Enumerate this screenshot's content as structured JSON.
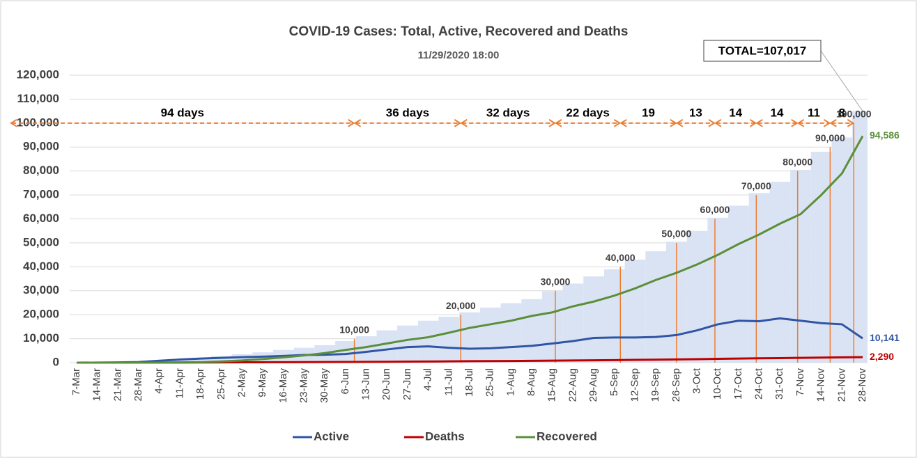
{
  "chart_data": {
    "type": "combo",
    "title": "COVID-19 Cases:  Total, Active, Recovered and Deaths",
    "subtitle": "11/29/2020 18:00",
    "categories": [
      "7-Mar",
      "14-Mar",
      "21-Mar",
      "28-Mar",
      "4-Apr",
      "11-Apr",
      "18-Apr",
      "25-Apr",
      "2-May",
      "9-May",
      "16-May",
      "23-May",
      "30-May",
      "6-Jun",
      "13-Jun",
      "20-Jun",
      "27-Jun",
      "4-Jul",
      "11-Jul",
      "18-Jul",
      "25-Jul",
      "1-Aug",
      "8-Aug",
      "15-Aug",
      "22-Aug",
      "29-Aug",
      "5-Sep",
      "12-Sep",
      "19-Sep",
      "26-Sep",
      "3-Oct",
      "10-Oct",
      "17-Oct",
      "24-Oct",
      "31-Oct",
      "7-Nov",
      "14-Nov",
      "21-Nov",
      "28-Nov"
    ],
    "total": {
      "color": "#dae3f3",
      "values": [
        0,
        50,
        150,
        300,
        1000,
        1500,
        2000,
        2800,
        3500,
        4300,
        5300,
        6200,
        7300,
        9000,
        11000,
        13500,
        15500,
        17500,
        19200,
        21000,
        23000,
        24800,
        26500,
        29800,
        33000,
        36000,
        39000,
        43000,
        46500,
        50500,
        55000,
        60500,
        65500,
        70800,
        75500,
        80500,
        88000,
        94000,
        105000
      ]
    },
    "total_label": "TOTAL=107,017",
    "series": [
      {
        "name": "Active",
        "color": "#2f55a4",
        "end_label": "10,141",
        "values": [
          0,
          30,
          100,
          250,
          800,
          1300,
          1700,
          2000,
          2300,
          2500,
          2800,
          3200,
          3300,
          3600,
          4500,
          5500,
          6500,
          6800,
          6200,
          5800,
          6000,
          6500,
          7000,
          8000,
          9000,
          10300,
          10500,
          10500,
          10700,
          11500,
          13500,
          16000,
          17500,
          17300,
          18500,
          17500,
          16500,
          16000,
          10141
        ]
      },
      {
        "name": "Deaths",
        "color": "#c00000",
        "end_label": "2,290",
        "values": [
          0,
          0,
          0,
          5,
          20,
          50,
          80,
          100,
          130,
          160,
          190,
          220,
          250,
          280,
          320,
          380,
          420,
          480,
          540,
          600,
          650,
          700,
          780,
          850,
          900,
          980,
          1050,
          1150,
          1250,
          1350,
          1450,
          1600,
          1700,
          1800,
          1900,
          2000,
          2100,
          2200,
          2290
        ]
      },
      {
        "name": "Recovered",
        "color": "#5b8f3a",
        "end_label": "94,586",
        "values": [
          0,
          0,
          0,
          10,
          50,
          100,
          200,
          500,
          900,
          1500,
          2200,
          3000,
          4000,
          5300,
          6500,
          8000,
          9500,
          10600,
          12500,
          14500,
          16000,
          17500,
          19500,
          21000,
          23500,
          25500,
          28000,
          31000,
          34500,
          37500,
          41000,
          45000,
          49500,
          53500,
          58000,
          62000,
          70000,
          79000,
          94586
        ]
      }
    ],
    "intervals": [
      {
        "value": 94,
        "label": "94 days"
      },
      {
        "value": 36,
        "label": "36 days"
      },
      {
        "value": 32,
        "label": "32 days"
      },
      {
        "value": 22,
        "label": "22 days"
      },
      {
        "value": 19,
        "label": "19"
      },
      {
        "value": 13,
        "label": "13"
      },
      {
        "value": 14,
        "label": "14"
      },
      {
        "value": 14,
        "label": "14"
      },
      {
        "value": 11,
        "label": "11"
      },
      {
        "value": 8,
        "label": "8"
      }
    ],
    "milestones": [
      {
        "value": 10000,
        "label": "10,000"
      },
      {
        "value": 20000,
        "label": "20,000"
      },
      {
        "value": 30000,
        "label": "30,000"
      },
      {
        "value": 40000,
        "label": "40,000"
      },
      {
        "value": 50000,
        "label": "50,000"
      },
      {
        "value": 60000,
        "label": "60,000"
      },
      {
        "value": 70000,
        "label": "70,000"
      },
      {
        "value": 80000,
        "label": "80,000"
      },
      {
        "value": 90000,
        "label": "90,000"
      },
      {
        "value": 100000,
        "label": "100,000"
      }
    ],
    "milestone_color": "#ed7d31",
    "ylim": [
      0,
      120000
    ],
    "yticks": [
      0,
      {
        "value": 10000,
        "label": "10,000"
      },
      {
        "value": 20000,
        "label": "20,000"
      },
      {
        "value": 30000,
        "label": "30,000"
      },
      {
        "value": 40000,
        "label": "40,000"
      },
      {
        "value": 50000,
        "label": "50,000"
      },
      {
        "value": 60000,
        "label": "60,000"
      },
      {
        "value": 70000,
        "label": "70,000"
      },
      {
        "value": 80000,
        "label": "80,000"
      },
      {
        "value": 90000,
        "label": "90,000"
      },
      {
        "value": 100000,
        "label": "100,000"
      },
      {
        "value": 110000,
        "label": "110,000"
      },
      {
        "value": 120000,
        "label": "120,000"
      }
    ],
    "grid": true
  }
}
